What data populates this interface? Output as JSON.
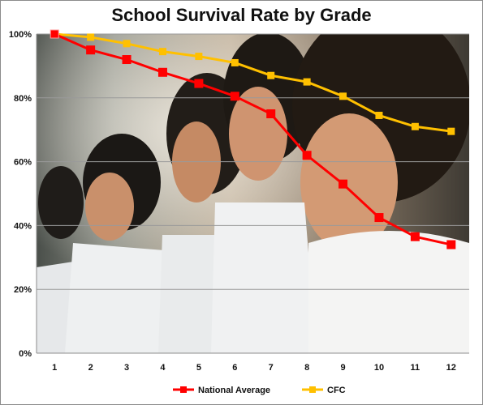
{
  "chart_data": {
    "type": "line",
    "title": "School Survival Rate by Grade",
    "xlabel": "",
    "ylabel": "",
    "categories": [
      "1",
      "2",
      "3",
      "4",
      "5",
      "6",
      "7",
      "8",
      "9",
      "10",
      "11",
      "12"
    ],
    "ylim": [
      0,
      100
    ],
    "yticks": [
      "0%",
      "20%",
      "40%",
      "60%",
      "80%",
      "100%"
    ],
    "grid": true,
    "legend_position": "bottom",
    "background": "photo of schoolchildren in white shirts",
    "series": [
      {
        "name": "National Average",
        "color": "#ff0000",
        "marker": "square",
        "values": [
          100,
          95,
          92,
          88,
          84.5,
          80.5,
          75,
          62,
          53,
          42.5,
          36.5,
          34
        ]
      },
      {
        "name": "CFC",
        "color": "#ffc000",
        "marker": "square",
        "values": [
          100,
          99,
          97,
          94.5,
          93,
          91,
          87,
          85,
          80.5,
          74.5,
          71,
          69.5
        ]
      }
    ]
  }
}
